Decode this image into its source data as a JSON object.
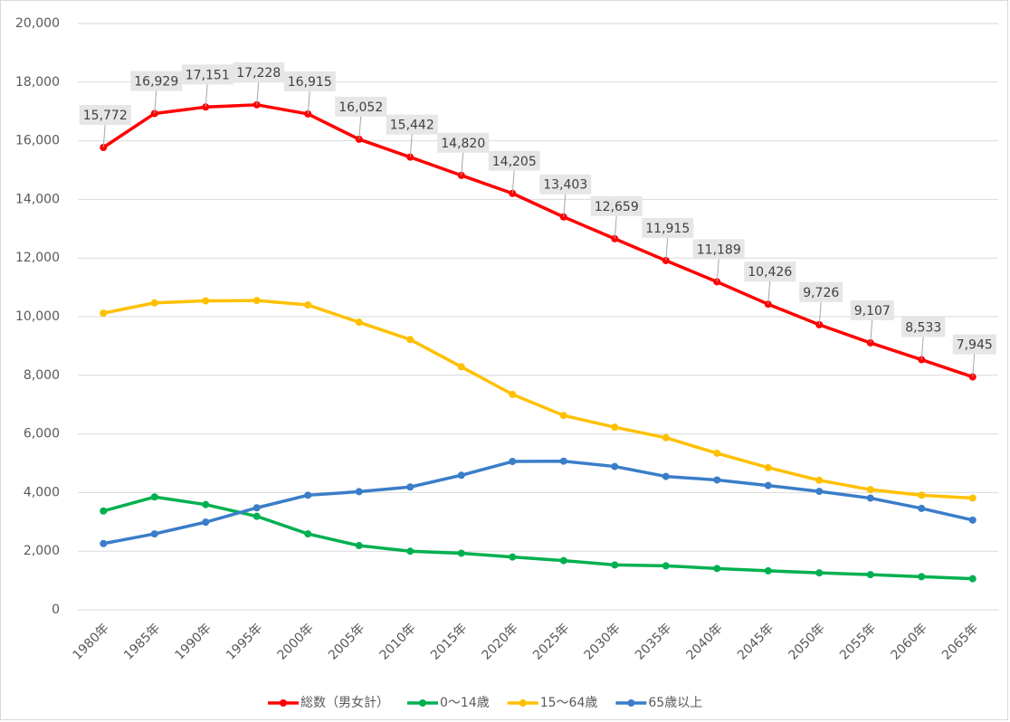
{
  "chart_data": {
    "type": "line",
    "categories": [
      "1980年",
      "1985年",
      "1990年",
      "1995年",
      "2000年",
      "2005年",
      "2010年",
      "2015年",
      "2020年",
      "2025年",
      "2030年",
      "2035年",
      "2040年",
      "2045年",
      "2050年",
      "2055年",
      "2060年",
      "2065年"
    ],
    "series": [
      {
        "name": "総数（男女計）",
        "color": "#ff0000",
        "values": [
          15772,
          16929,
          17151,
          17228,
          16915,
          16052,
          15442,
          14820,
          14205,
          13403,
          12659,
          11915,
          11189,
          10426,
          9726,
          9107,
          8533,
          7945
        ],
        "value_labels": [
          "15,772",
          "16,929",
          "17,151",
          "17,228",
          "16,915",
          "16,052",
          "15,442",
          "14,820",
          "14,205",
          "13,403",
          "12,659",
          "11,915",
          "11,189",
          "10,426",
          "9,726",
          "9,107",
          "8,533",
          "7,945"
        ]
      },
      {
        "name": "0～14歳",
        "color": "#00b050",
        "values": [
          3370,
          3850,
          3590,
          3190,
          2590,
          2190,
          2000,
          1930,
          1800,
          1680,
          1530,
          1500,
          1410,
          1330,
          1260,
          1200,
          1130,
          1060
        ]
      },
      {
        "name": "15～64歳",
        "color": "#ffc000",
        "values": [
          10120,
          10470,
          10540,
          10550,
          10400,
          9810,
          9220,
          8290,
          7350,
          6630,
          6230,
          5870,
          5340,
          4850,
          4420,
          4100,
          3910,
          3810
        ]
      },
      {
        "name": "65歳以上",
        "color": "#3a7dc9",
        "values": [
          2260,
          2590,
          2990,
          3480,
          3910,
          4030,
          4190,
          4590,
          5060,
          5070,
          4890,
          4550,
          4430,
          4240,
          4040,
          3810,
          3460,
          3060
        ]
      }
    ],
    "ylim": [
      0,
      20000
    ],
    "yticks": [
      0,
      {
        "value": 2000,
        "label": "2,000"
      },
      {
        "value": 4000,
        "label": "4,000"
      },
      {
        "value": 6000,
        "label": "6,000"
      },
      {
        "value": 8000,
        "label": "8,000"
      },
      {
        "value": 10000,
        "label": "10,000"
      },
      {
        "value": 12000,
        "label": "12,000"
      },
      {
        "value": 14000,
        "label": "14,000"
      },
      {
        "value": 16000,
        "label": "16,000"
      },
      {
        "value": 18000,
        "label": "18,000"
      },
      {
        "value": 20000,
        "label": "20,000"
      }
    ],
    "grid": true,
    "legend": "bottom"
  }
}
